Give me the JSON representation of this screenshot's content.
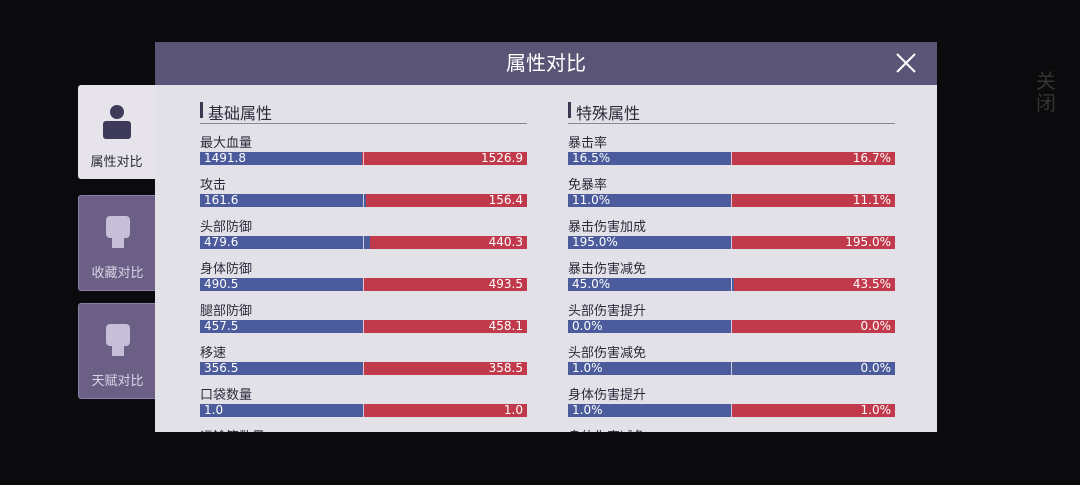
{
  "header": {
    "title": "属性对比"
  },
  "side_close": "关闭",
  "tabs": [
    "属性对比",
    "收藏对比",
    "天赋对比"
  ],
  "sections": [
    {
      "title": "基础属性",
      "rows": [
        {
          "label": "最大血量",
          "left": {
            "value": 1491.8,
            "label": "1491.8"
          },
          "right": {
            "value": 1526.9,
            "label": "1526.9"
          }
        },
        {
          "label": "攻击",
          "left": {
            "value": 161.6,
            "label": "161.6"
          },
          "right": {
            "value": 156.4,
            "label": "156.4"
          }
        },
        {
          "label": "头部防御",
          "left": {
            "value": 479.6,
            "label": "479.6"
          },
          "right": {
            "value": 440.3,
            "label": "440.3"
          }
        },
        {
          "label": "身体防御",
          "left": {
            "value": 490.5,
            "label": "490.5"
          },
          "right": {
            "value": 493.5,
            "label": "493.5"
          }
        },
        {
          "label": "腿部防御",
          "left": {
            "value": 457.5,
            "label": "457.5"
          },
          "right": {
            "value": 458.1,
            "label": "458.1"
          }
        },
        {
          "label": "移速",
          "left": {
            "value": 356.5,
            "label": "356.5"
          },
          "right": {
            "value": 358.5,
            "label": "358.5"
          }
        },
        {
          "label": "口袋数量",
          "left": {
            "value": 1.0,
            "label": "1.0"
          },
          "right": {
            "value": 1.0,
            "label": "1.0"
          }
        },
        {
          "label": "运输箱数量"
        }
      ]
    },
    {
      "title": "特殊属性",
      "rows": [
        {
          "label": "暴击率",
          "left": {
            "value": 16.5,
            "label": "16.5%"
          },
          "right": {
            "value": 16.7,
            "label": "16.7%"
          }
        },
        {
          "label": "免暴率",
          "left": {
            "value": 11.0,
            "label": "11.0%"
          },
          "right": {
            "value": 11.1,
            "label": "11.1%"
          }
        },
        {
          "label": "暴击伤害加成",
          "left": {
            "value": 195.0,
            "label": "195.0%"
          },
          "right": {
            "value": 195.0,
            "label": "195.0%"
          }
        },
        {
          "label": "暴击伤害减免",
          "left": {
            "value": 45.0,
            "label": "45.0%"
          },
          "right": {
            "value": 43.5,
            "label": "43.5%"
          }
        },
        {
          "label": "头部伤害提升",
          "left": {
            "value": 0.0,
            "label": "0.0%"
          },
          "right": {
            "value": 0.0,
            "label": "0.0%"
          }
        },
        {
          "label": "头部伤害减免",
          "left": {
            "value": 1.0,
            "label": "1.0%"
          },
          "right": {
            "value": 0.0,
            "label": "0.0%"
          }
        },
        {
          "label": "身体伤害提升",
          "left": {
            "value": 1.0,
            "label": "1.0%"
          },
          "right": {
            "value": 1.0,
            "label": "1.0%"
          }
        },
        {
          "label": "身体伤害减免"
        }
      ]
    }
  ]
}
